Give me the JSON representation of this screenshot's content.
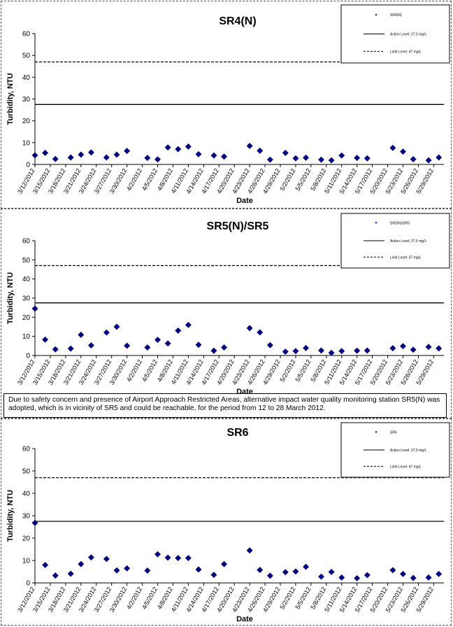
{
  "chart_data": [
    {
      "type": "scatter",
      "title": "SR4(N)",
      "xlabel": "Date",
      "ylabel": "Turbidity, NTU",
      "ylim": [
        0,
        60
      ],
      "yticks": [
        "0",
        "10",
        "20",
        "30",
        "40",
        "50",
        "60"
      ],
      "xticks": [
        "3/12/2012",
        "3/15/2012",
        "3/18/2012",
        "3/21/2012",
        "3/24/2012",
        "3/27/2012",
        "3/30/2012",
        "4/2/2012",
        "4/5/2012",
        "4/8/2012",
        "4/11/2012",
        "4/14/2012",
        "4/17/2012",
        "4/20/2012",
        "4/23/2012",
        "4/26/2012",
        "4/29/2012",
        "5/2/2012",
        "5/5/2012",
        "5/8/2012",
        "5/11/2012",
        "5/14/2012",
        "5/17/2012",
        "5/20/2012",
        "5/23/2012",
        "5/26/2012",
        "5/29/2012"
      ],
      "legend": {
        "placement": "top-right",
        "points_label": "SR4(N)",
        "action_label": "Action Level: 27.5 mg/L",
        "limit_label": "Limit Level: 47 mg/L"
      },
      "action_level": 27.5,
      "limit_level": 47,
      "series": [
        {
          "name": "SR4(N)",
          "color": "#00008B",
          "x": [
            "3/12/2012",
            "3/14/2012",
            "3/16/2012",
            "3/19/2012",
            "3/21/2012",
            "3/23/2012",
            "3/26/2012",
            "3/28/2012",
            "3/30/2012",
            "4/3/2012",
            "4/5/2012",
            "4/7/2012",
            "4/9/2012",
            "4/11/2012",
            "4/13/2012",
            "4/16/2012",
            "4/18/2012",
            "4/23/2012",
            "4/25/2012",
            "4/27/2012",
            "4/30/2012",
            "5/2/2012",
            "5/4/2012",
            "5/7/2012",
            "5/9/2012",
            "5/11/2012",
            "5/14/2012",
            "5/16/2012",
            "5/21/2012",
            "5/23/2012",
            "5/25/2012",
            "5/28/2012",
            "5/30/2012"
          ],
          "y": [
            4.2,
            5.3,
            2.5,
            3.2,
            4.5,
            5.5,
            3.2,
            4.5,
            6.2,
            3,
            2.3,
            7.8,
            7,
            8.2,
            4.7,
            4.1,
            3.6,
            8.5,
            6.3,
            2.2,
            5.3,
            2.8,
            3.1,
            2.2,
            1.9,
            4.1,
            3,
            2.8,
            7.6,
            5.9,
            2.4,
            1.9,
            3.2
          ]
        }
      ]
    },
    {
      "type": "scatter",
      "title": "SR5(N)/SR5",
      "xlabel": "Date",
      "ylabel": "Turbidity, NTU",
      "ylim": [
        0,
        60
      ],
      "yticks": [
        "0",
        "10",
        "20",
        "30",
        "40",
        "50",
        "60"
      ],
      "xticks": [
        "3/12/2012",
        "3/15/2012",
        "3/18/2012",
        "3/21/2012",
        "3/24/2012",
        "3/27/2012",
        "3/30/2012",
        "4/2/2012",
        "4/5/2012",
        "4/8/2012",
        "4/11/2012",
        "4/14/2012",
        "4/17/2012",
        "4/20/2012",
        "4/23/2012",
        "4/26/2012",
        "4/29/2012",
        "5/2/2012",
        "5/5/2012",
        "5/8/2012",
        "5/11/2012",
        "5/14/2012",
        "5/17/2012",
        "5/20/2012",
        "5/23/2012",
        "5/26/2012",
        "5/29/2012"
      ],
      "legend": {
        "placement": "top-right",
        "points_label": "SR5(N)/SR5",
        "action_label": "Action Level: 27.5 mg/L",
        "limit_label": "Limit Level: 47 mg/L"
      },
      "action_level": 27.5,
      "limit_level": 47,
      "series": [
        {
          "name": "SR5(N)/SR5",
          "color": "#00008B",
          "x": [
            "3/12/2012",
            "3/14/2012",
            "3/16/2012",
            "3/19/2012",
            "3/21/2012",
            "3/23/2012",
            "3/26/2012",
            "3/28/2012",
            "3/30/2012",
            "4/3/2012",
            "4/5/2012",
            "4/7/2012",
            "4/9/2012",
            "4/11/2012",
            "4/13/2012",
            "4/16/2012",
            "4/18/2012",
            "4/23/2012",
            "4/25/2012",
            "4/27/2012",
            "4/30/2012",
            "5/2/2012",
            "5/4/2012",
            "5/7/2012",
            "5/9/2012",
            "5/11/2012",
            "5/14/2012",
            "5/16/2012",
            "5/21/2012",
            "5/23/2012",
            "5/25/2012",
            "5/28/2012",
            "5/30/2012"
          ],
          "y": [
            24.5,
            8.3,
            3.2,
            3.6,
            10.8,
            5.3,
            12,
            15,
            5.1,
            4.2,
            8.2,
            6.3,
            13,
            16,
            5.6,
            2.5,
            4.2,
            14.3,
            12.1,
            5.4,
            2,
            2.3,
            3.9,
            2.6,
            1.4,
            2.3,
            2.5,
            2.6,
            3.8,
            4.9,
            3,
            4.5,
            3.7
          ]
        }
      ]
    },
    {
      "type": "scatter",
      "title": "SR6",
      "xlabel": "Date",
      "ylabel": "Turbidity, NTU",
      "ylim": [
        0,
        60
      ],
      "yticks": [
        "0",
        "10",
        "20",
        "30",
        "40",
        "50",
        "60"
      ],
      "xticks": [
        "3/12/2012",
        "3/15/2012",
        "3/18/2012",
        "3/21/2012",
        "3/24/2012",
        "3/27/2012",
        "3/30/2012",
        "4/2/2012",
        "4/5/2012",
        "4/8/2012",
        "4/11/2012",
        "4/14/2012",
        "4/17/2012",
        "4/20/2012",
        "4/23/2012",
        "4/26/2012",
        "4/29/2012",
        "5/2/2012",
        "5/5/2012",
        "5/8/2012",
        "5/11/2012",
        "5/14/2012",
        "5/17/2012",
        "5/20/2012",
        "5/23/2012",
        "5/26/2012",
        "5/29/2012"
      ],
      "legend": {
        "placement": "top-right",
        "points_label": "SR6",
        "action_label": "Action Level: 27.5 mg/L",
        "limit_label": "Limit Level: 47 mg/L"
      },
      "action_level": 27.5,
      "limit_level": 47,
      "series": [
        {
          "name": "SR6",
          "color": "#00008B",
          "x": [
            "3/12/2012",
            "3/14/2012",
            "3/16/2012",
            "3/19/2012",
            "3/21/2012",
            "3/23/2012",
            "3/26/2012",
            "3/28/2012",
            "3/30/2012",
            "4/3/2012",
            "4/5/2012",
            "4/7/2012",
            "4/9/2012",
            "4/11/2012",
            "4/13/2012",
            "4/16/2012",
            "4/18/2012",
            "4/23/2012",
            "4/25/2012",
            "4/27/2012",
            "4/30/2012",
            "5/2/2012",
            "5/4/2012",
            "5/7/2012",
            "5/9/2012",
            "5/11/2012",
            "5/14/2012",
            "5/16/2012",
            "5/21/2012",
            "5/23/2012",
            "5/25/2012",
            "5/28/2012",
            "5/30/2012"
          ],
          "y": [
            26.8,
            8,
            3.3,
            4.1,
            8.4,
            11.4,
            10.7,
            5.6,
            6.5,
            5.5,
            12.8,
            11.3,
            11.1,
            11.1,
            6,
            3.6,
            8.4,
            14.5,
            5.8,
            3.2,
            4.8,
            5.1,
            7.2,
            2.8,
            4.9,
            2.4,
            2.1,
            3.5,
            5.7,
            4,
            2.2,
            2.4,
            4
          ]
        }
      ]
    }
  ],
  "note": "Due to safety concern and presence of Airport Approach Restricted Areas, alternative impact water quality monitoring station SR5(N) was adopted, which is in vicinity of SR5 and could be reachable, for the period from 12 to 28 March 2012."
}
